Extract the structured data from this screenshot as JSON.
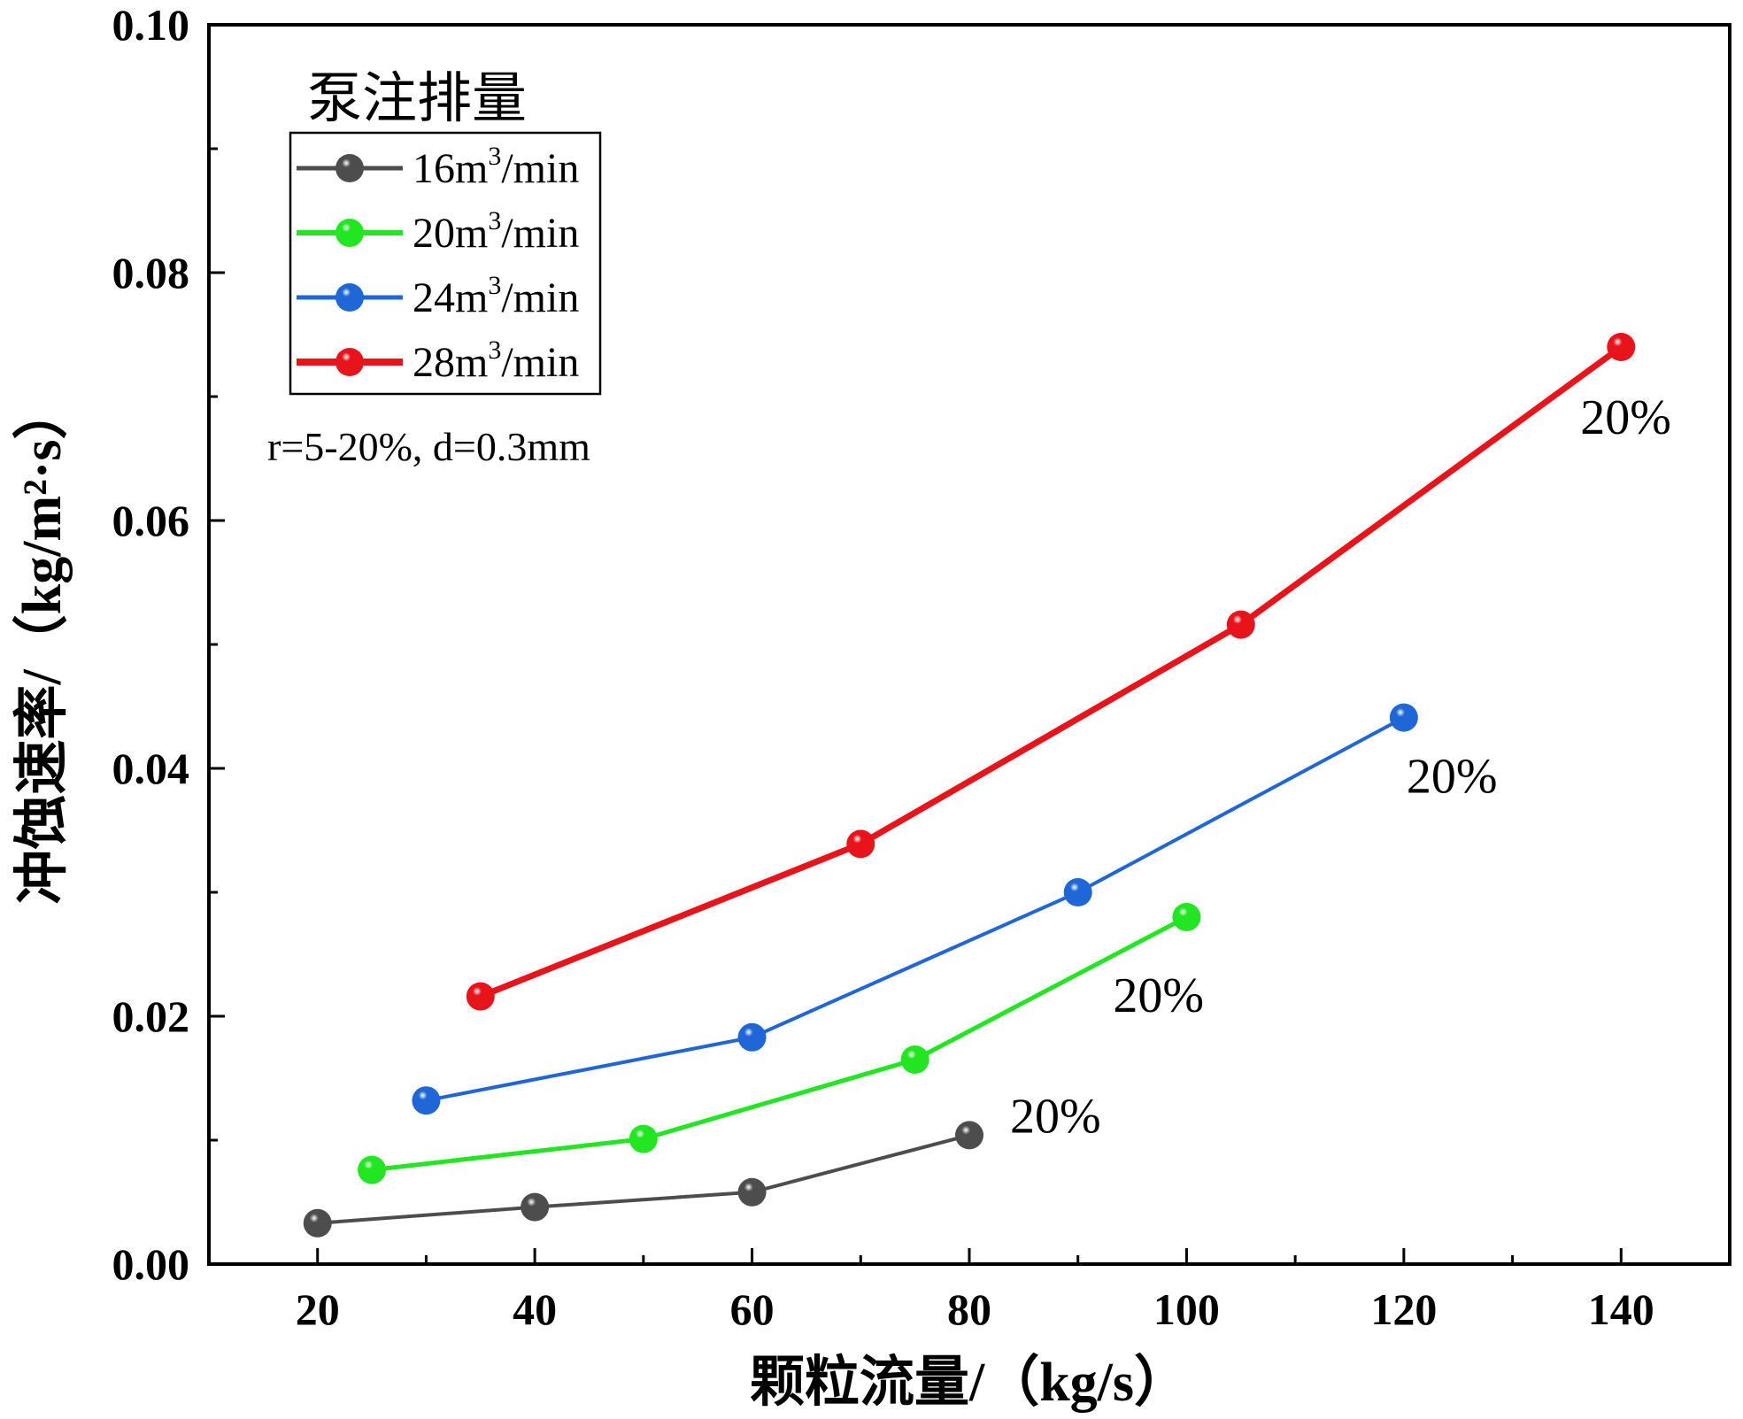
{
  "chart_data": {
    "type": "line",
    "title": "",
    "xlabel": "颗粒流量/（kg/s）",
    "ylabel": "冲蚀速率/（kg/m²·s）",
    "xlim": [
      10,
      150
    ],
    "ylim": [
      0,
      0.1
    ],
    "x_ticks": [
      "20",
      "40",
      "60",
      "80",
      "100",
      "120",
      "140"
    ],
    "y_ticks": [
      "0.00",
      "0.02",
      "0.04",
      "0.06",
      "0.08",
      "0.10"
    ],
    "legend_title": "泵注排量",
    "legend_position": "top-left",
    "condition_label": "r=5-20%, d=0.3mm",
    "series": [
      {
        "name": "16m3/min",
        "label_base": "16m",
        "label_sup": "3",
        "label_unit": "/min",
        "color": "#4d4d4d",
        "x": [
          20,
          40,
          60,
          80
        ],
        "y": [
          0.0033,
          0.0046,
          0.0058,
          0.0104
        ],
        "end_label": "20%"
      },
      {
        "name": "20m3/min",
        "label_base": "20m",
        "label_sup": "3",
        "label_unit": "/min",
        "color": "#22e622",
        "x": [
          25,
          50,
          75,
          100
        ],
        "y": [
          0.0076,
          0.0101,
          0.0165,
          0.028
        ],
        "end_label": "20%"
      },
      {
        "name": "24m3/min",
        "label_base": "24m",
        "label_sup": "3",
        "label_unit": "/min",
        "color": "#1f66d6",
        "x": [
          30,
          60,
          90,
          120
        ],
        "y": [
          0.0132,
          0.0183,
          0.03,
          0.0441
        ],
        "end_label": "20%"
      },
      {
        "name": "28m3/min",
        "label_base": "28m",
        "label_sup": "3",
        "label_unit": "/min",
        "color": "#e8141c",
        "x": [
          35,
          70,
          105,
          140
        ],
        "y": [
          0.0216,
          0.0339,
          0.0516,
          0.074
        ],
        "end_label": "20%"
      }
    ]
  }
}
